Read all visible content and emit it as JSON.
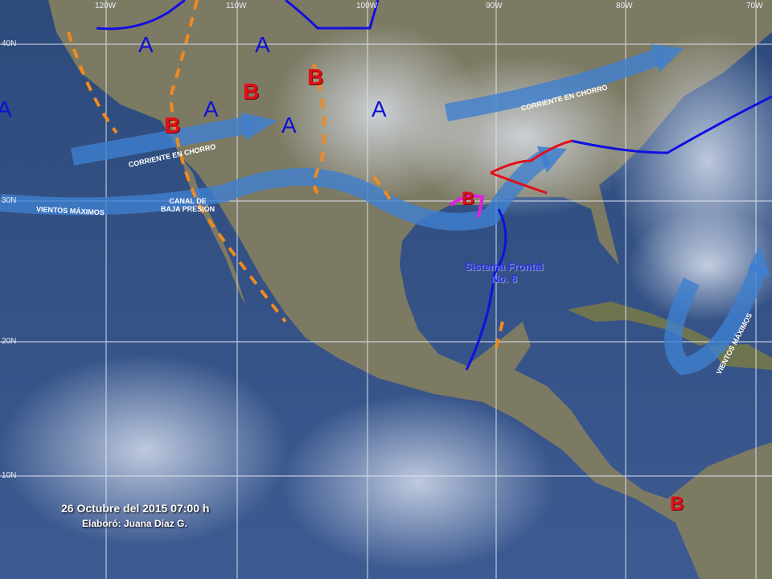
{
  "grid": {
    "longitudes": [
      "120W",
      "110W",
      "100W",
      "90W",
      "80W",
      "70W"
    ],
    "latitudes": [
      "40N",
      "30N",
      "20N",
      "10N"
    ]
  },
  "pressure_centers": {
    "high_symbol": "A",
    "low_symbol": "B",
    "high_color": "#1010d8",
    "low_color": "#e0101a"
  },
  "labels": {
    "jet_stream_west": "CORRIENTE EN CHORRO",
    "jet_stream_east": "CORRIENTE EN CHORRO",
    "max_winds_west": "VIENTOS MÁXIMOS",
    "max_winds_east": "VIENTOS MÁXIMOS",
    "low_pressure_trough": [
      "CANAL DE",
      "BAJA PRESIÓN"
    ],
    "front_system": [
      "Sistema Frontal",
      "No. 8"
    ]
  },
  "footer": {
    "datetime": "26 Octubre del 2015 07:00 h",
    "author": "Elaboró: Juana Díaz G."
  },
  "colors": {
    "cold_front": "#1010e0",
    "warm_front": "#e0101a",
    "trough": "#f08a20",
    "jet_arrow": "#3f7fd0"
  }
}
